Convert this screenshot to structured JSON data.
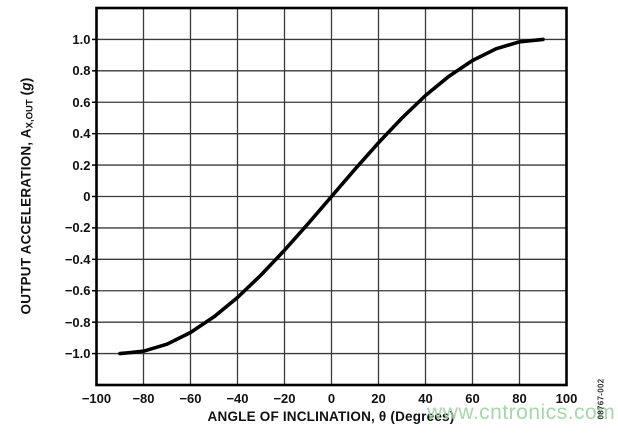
{
  "figure": {
    "watermark": "www.cntronics.com",
    "watermark_color": "#9ad0a0",
    "figure_number": "08767-002",
    "background_color": "#ffffff",
    "line_color": "#000000",
    "grid_color": "#3a3a3a"
  },
  "chart_data": {
    "type": "line",
    "title": "",
    "xlabel": "ANGLE OF INCLINATION, θ (Degrees)",
    "ylabel": {
      "pre": "OUTPUT ACCELERATION, A",
      "sub": "X,OUT",
      "unit_open": " (",
      "unit_italic": "g",
      "unit_close": ")"
    },
    "xlim": [
      -100,
      100
    ],
    "ylim": [
      -1.2,
      1.2
    ],
    "grid": true,
    "legend": false,
    "x_ticks": [
      -100,
      -80,
      -60,
      -40,
      -20,
      0,
      20,
      40,
      60,
      80,
      100
    ],
    "x_tick_labels": [
      "−100",
      "−80",
      "−60",
      "−40",
      "−20",
      "0",
      "20",
      "40",
      "60",
      "80",
      "100"
    ],
    "y_ticks": [
      1.0,
      0.8,
      0.6,
      0.4,
      0.2,
      0,
      -0.2,
      -0.4,
      -0.6,
      -0.8,
      -1.0
    ],
    "y_tick_labels": [
      "1.0",
      "0.8",
      "0.6",
      "0.4",
      "0.2",
      "0",
      "−0.2",
      "−0.4",
      "−0.6",
      "−0.8",
      "−1.0"
    ],
    "series": [
      {
        "x": [
          -90,
          -80,
          -70,
          -60,
          -50,
          -40,
          -30,
          -20,
          -10,
          0,
          10,
          20,
          30,
          40,
          50,
          60,
          70,
          80,
          90
        ],
        "y": [
          -1.0,
          -0.985,
          -0.94,
          -0.866,
          -0.766,
          -0.643,
          -0.5,
          -0.342,
          -0.174,
          0.0,
          0.174,
          0.342,
          0.5,
          0.643,
          0.766,
          0.866,
          0.94,
          0.985,
          1.0
        ]
      }
    ]
  }
}
